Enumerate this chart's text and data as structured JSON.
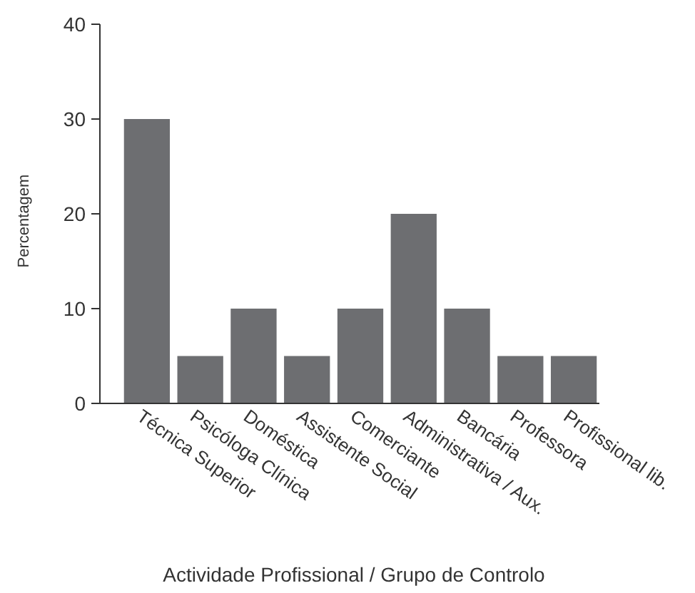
{
  "chart_data": {
    "type": "bar",
    "xlabel": "Actividade Profissional / Grupo de Controlo",
    "ylabel": "Percentagem",
    "categories": [
      "Técnica Superior",
      "Psicóloga Clínica",
      "Doméstica",
      "Assistente Social",
      "Comerciante",
      "Administrativa / Aux.",
      "Bancária",
      "Professora",
      "Profissional lib."
    ],
    "values": [
      30,
      5,
      10,
      5,
      10,
      20,
      10,
      5,
      5
    ],
    "color": "#6d6e71",
    "ylim": [
      0,
      40
    ],
    "yticks": [
      0,
      10,
      20,
      30,
      40
    ],
    "grid": false
  }
}
